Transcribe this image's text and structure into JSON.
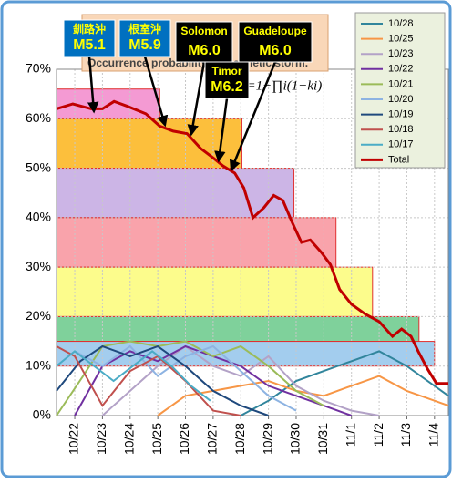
{
  "chart_data": {
    "type": "line",
    "title": "Occurrence probability of magnetic storm.",
    "formula": "%=1−∏i(1−ki)",
    "xlim": [
      -0.66,
      13.5
    ],
    "xticks": [
      {
        "value": 0,
        "label": "10/22"
      },
      {
        "value": 1,
        "label": "10/23"
      },
      {
        "value": 2,
        "label": "10/24"
      },
      {
        "value": 3,
        "label": "10/25"
      },
      {
        "value": 4,
        "label": "10/26"
      },
      {
        "value": 5,
        "label": "10/27"
      },
      {
        "value": 6,
        "label": "10/28"
      },
      {
        "value": 7,
        "label": "10/29"
      },
      {
        "value": 8,
        "label": "10/30"
      },
      {
        "value": 9,
        "label": "10/31"
      },
      {
        "value": 10,
        "label": "11/1"
      },
      {
        "value": 11,
        "label": "11/2"
      },
      {
        "value": 12,
        "label": "11/3"
      },
      {
        "value": 13,
        "label": "11/4"
      }
    ],
    "ylim": [
      0,
      70
    ],
    "yticks": [
      {
        "value": 0,
        "label": "0%"
      },
      {
        "value": 10,
        "label": "10%"
      },
      {
        "value": 20,
        "label": "20%"
      },
      {
        "value": 30,
        "label": "30%"
      },
      {
        "value": 40,
        "label": "40%"
      },
      {
        "value": 50,
        "label": "50%"
      },
      {
        "value": 60,
        "label": "60%"
      },
      {
        "value": 70,
        "label": "70%"
      }
    ],
    "grid": true,
    "legend": "upper right",
    "bands": [
      {
        "low": 60,
        "high": 66,
        "end": 3.07,
        "color": "#f49ad3"
      },
      {
        "low": 50,
        "high": 60,
        "end": 6.04,
        "color": "#fcbf3c"
      },
      {
        "low": 40,
        "high": 50,
        "end": 7.92,
        "color": "#ccb5e6"
      },
      {
        "low": 30,
        "high": 40,
        "end": 9.44,
        "color": "#f9a3ab"
      },
      {
        "low": 20,
        "high": 30,
        "end": 10.76,
        "color": "#fcfc8c"
      },
      {
        "low": 15,
        "high": 20,
        "end": 12.44,
        "color": "#7fd19b"
      },
      {
        "low": 10,
        "high": 15,
        "end": 13.0,
        "color": "#a3cdee"
      }
    ],
    "series": [
      {
        "name": "10/28",
        "color": "#31859c",
        "x": [
          6,
          7,
          8,
          9,
          10,
          11,
          12,
          13,
          13.5
        ],
        "values": [
          0,
          3,
          7,
          9,
          11,
          13,
          10,
          6,
          4
        ]
      },
      {
        "name": "10/25",
        "color": "#f79646",
        "x": [
          3,
          4,
          5,
          6,
          7,
          8,
          9,
          10,
          11,
          12,
          13,
          13.5
        ],
        "values": [
          0,
          4,
          5,
          6,
          7,
          5,
          4,
          6,
          8,
          5,
          3,
          2
        ]
      },
      {
        "name": "10/23",
        "color": "#b3a2c7",
        "x": [
          1,
          2,
          3,
          4,
          5,
          6,
          7,
          8,
          9,
          10,
          11
        ],
        "values": [
          0,
          5,
          10,
          14,
          10,
          8,
          12,
          6,
          3,
          1,
          0
        ]
      },
      {
        "name": "10/22",
        "color": "#7030a0",
        "x": [
          0,
          1,
          2,
          3,
          4,
          5,
          6,
          7,
          8,
          9,
          10
        ],
        "values": [
          0,
          10,
          13,
          11,
          14,
          12,
          10,
          6,
          4,
          2,
          0
        ]
      },
      {
        "name": "10/21",
        "color": "#9bbb59",
        "x": [
          -0.66,
          0.3,
          1,
          2,
          3,
          4,
          5,
          6,
          7,
          8,
          9
        ],
        "values": [
          0,
          8,
          14,
          15,
          14,
          15,
          12,
          14,
          10,
          5,
          2
        ]
      },
      {
        "name": "10/20",
        "color": "#8db3e2",
        "x": [
          0,
          1,
          2,
          3,
          4,
          5,
          6,
          7,
          8
        ],
        "values": [
          13,
          10,
          14,
          8,
          12,
          14,
          9,
          4,
          1
        ]
      },
      {
        "name": "10/19",
        "color": "#1f497d",
        "x": [
          -0.66,
          0.2,
          1,
          2,
          3,
          4,
          5,
          6,
          7
        ],
        "values": [
          5,
          11,
          14,
          12,
          14,
          10,
          5,
          2,
          0
        ]
      },
      {
        "name": "10/18",
        "color": "#c0504d",
        "x": [
          -0.66,
          0,
          1,
          2,
          3,
          4,
          5,
          6
        ],
        "values": [
          14,
          12,
          2,
          9,
          12,
          7,
          1,
          0
        ]
      },
      {
        "name": "10/17",
        "color": "#4bacc6",
        "x": [
          -0.66,
          0,
          0.7,
          1.4,
          2.1,
          2.8,
          3.5,
          4.2,
          4.9
        ],
        "values": [
          10,
          13,
          10,
          7,
          10,
          13,
          10,
          6,
          3
        ]
      },
      {
        "name": "Total",
        "color": "#c00000",
        "x": [
          -0.66,
          -0.07,
          0.59,
          1,
          1.42,
          1.91,
          2.57,
          3.07,
          3.56,
          4.06,
          4.55,
          5.02,
          5.35,
          5.78,
          6.11,
          6.44,
          6.83,
          7.19,
          7.52,
          7.86,
          8.19,
          8.51,
          8.91,
          9.24,
          9.57,
          10,
          10.5,
          11,
          11.48,
          11.81,
          12.15,
          12.41,
          12.74,
          13.07,
          13.5
        ],
        "values": [
          62,
          63,
          62,
          62,
          63.5,
          62.5,
          61,
          58.5,
          57.5,
          57,
          54,
          52,
          50.5,
          49,
          46,
          40,
          42,
          44.5,
          43.5,
          39,
          35,
          35.5,
          33,
          30.5,
          25.5,
          22.5,
          20.5,
          19,
          16,
          17.5,
          16,
          13,
          9.5,
          6.5,
          6.5
        ]
      }
    ],
    "annotations": [
      {
        "place": "釧路沖",
        "magnitude": "M5.1"
      },
      {
        "place": "根室沖",
        "magnitude": "M5.9"
      },
      {
        "place": "Solomon",
        "magnitude": "M6.0"
      },
      {
        "place": "Guadeloupe",
        "magnitude": "M6.0"
      },
      {
        "place": "Timor",
        "magnitude": "M6.2"
      }
    ]
  }
}
